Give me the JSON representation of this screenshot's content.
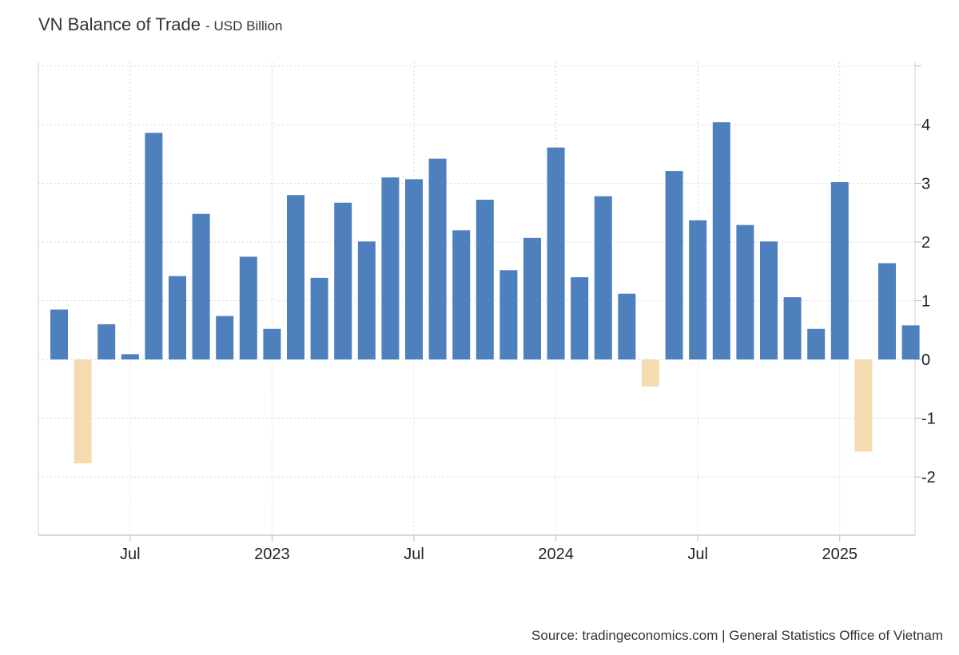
{
  "header": {
    "title": "VN Balance of Trade",
    "unit": "- USD Billion"
  },
  "source": "Source: tradingeconomics.com | General Statistics Office of Vietnam",
  "colors": {
    "positive": "#4e80bd",
    "negative": "#f4dbb0",
    "grid": "#d9d9d9"
  },
  "chart_data": {
    "type": "bar",
    "title": "VN Balance of Trade",
    "ylabel": "USD Billion",
    "ylim": [
      -3,
      5
    ],
    "yticks": [
      -2,
      -1,
      0,
      1,
      2,
      3,
      4
    ],
    "grid": true,
    "categories": [
      "Apr 2022",
      "May 2022",
      "Jun 2022",
      "Jul 2022",
      "Aug 2022",
      "Sep 2022",
      "Oct 2022",
      "Nov 2022",
      "Dec 2022",
      "Jan 2023",
      "Feb 2023",
      "Mar 2023",
      "Apr 2023",
      "May 2023",
      "Jun 2023",
      "Jul 2023",
      "Aug 2023",
      "Sep 2023",
      "Oct 2023",
      "Nov 2023",
      "Dec 2023",
      "Jan 2024",
      "Feb 2024",
      "Mar 2024",
      "Apr 2024",
      "May 2024",
      "Jun 2024",
      "Jul 2024",
      "Aug 2024",
      "Sep 2024",
      "Oct 2024",
      "Nov 2024",
      "Dec 2024",
      "Jan 2025",
      "Feb 2025",
      "Mar 2025",
      "Apr 2025"
    ],
    "values": [
      0.85,
      -1.77,
      0.6,
      0.09,
      3.86,
      1.42,
      2.48,
      0.74,
      1.75,
      0.52,
      2.8,
      1.39,
      2.67,
      2.01,
      3.1,
      3.07,
      3.42,
      2.2,
      2.72,
      1.52,
      2.07,
      3.61,
      1.4,
      2.78,
      1.12,
      -0.46,
      3.21,
      2.37,
      4.04,
      2.29,
      2.01,
      1.06,
      0.52,
      3.02,
      -1.57,
      1.64,
      0.58
    ],
    "xtick_labels": [
      {
        "label": "Jul",
        "category": "Jul 2022"
      },
      {
        "label": "2023",
        "category": "Jan 2023"
      },
      {
        "label": "Jul",
        "category": "Jul 2023"
      },
      {
        "label": "2024",
        "category": "Jan 2024"
      },
      {
        "label": "Jul",
        "category": "Jul 2024"
      },
      {
        "label": "2025",
        "category": "Jan 2025"
      }
    ]
  }
}
